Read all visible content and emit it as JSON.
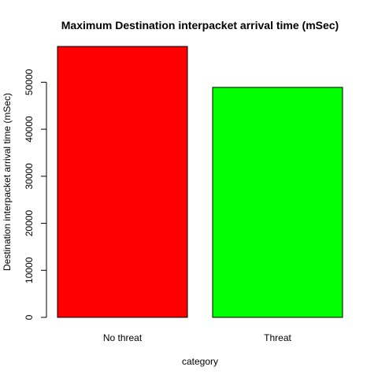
{
  "chart_data": {
    "type": "bar",
    "title": "Maximum Destination interpacket arrival time (mSec)",
    "xlabel": "category",
    "ylabel": "Destination interpacket arrival time (mSec)",
    "categories": [
      "No threat",
      "Threat"
    ],
    "values": [
      57600,
      48900
    ],
    "colors": [
      "#ff0000",
      "#00ff00"
    ],
    "ylim": [
      0,
      57600
    ],
    "yticks": [
      0,
      10000,
      20000,
      30000,
      40000,
      50000
    ],
    "ytick_labels": [
      "0",
      "10000",
      "20000",
      "30000",
      "40000",
      "50000"
    ],
    "grid": false,
    "legend": "none"
  }
}
